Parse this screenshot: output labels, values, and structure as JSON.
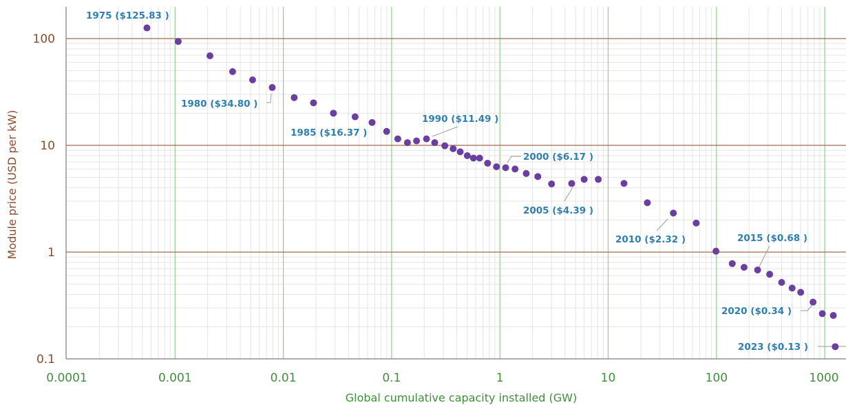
{
  "chart_data": {
    "type": "scatter",
    "xlabel": "Global cumulative capacity installed (GW)",
    "ylabel": "Module price (USD per kW)",
    "x_scale": "log",
    "y_scale": "log",
    "xlim": [
      0.0001,
      1250
    ],
    "ylim": [
      0.1,
      200
    ],
    "x_ticks": [
      "0.0001",
      "0.001",
      "0.01",
      "0.1",
      "1",
      "10",
      "100",
      "1000"
    ],
    "x_tick_values": [
      0.0001,
      0.001,
      0.01,
      0.1,
      1,
      10,
      100,
      1000
    ],
    "y_ticks": [
      "0.1",
      "1",
      "10",
      "100"
    ],
    "y_tick_values": [
      0.1,
      1,
      10,
      100
    ],
    "grid": true,
    "colors": {
      "points": "#6a3fa0",
      "annotation": "#2f7fae",
      "y_axis": "#8a4b2e",
      "x_axis": "#3f8f3a",
      "major_h_grid": "#a06a50",
      "major_v_grid": "#8fd08a",
      "minor_grid": "#e4e4e4"
    },
    "series": [
      {
        "x": [
          0.00055,
          0.00107,
          0.0021,
          0.0034,
          0.0052,
          0.0079,
          0.0126,
          0.019,
          0.029,
          0.046,
          0.066,
          0.09,
          0.114,
          0.14,
          0.17,
          0.21,
          0.25,
          0.31,
          0.37,
          0.43,
          0.5,
          0.57,
          0.65,
          0.77,
          0.93,
          1.13,
          1.38,
          1.75,
          2.24,
          3.0,
          4.6,
          6.0,
          8.1,
          14.0,
          23.0,
          40.0,
          65.0,
          99.0,
          140.0,
          180.0,
          240.0,
          310.0,
          400.0,
          500.0,
          600.0,
          780.0,
          950.0,
          1200.0
        ],
        "y": [
          125.83,
          94,
          69,
          49,
          41,
          34.8,
          28,
          25,
          20,
          18.5,
          16.37,
          13.5,
          11.5,
          10.6,
          11.0,
          11.49,
          10.6,
          9.9,
          9.3,
          8.7,
          8.0,
          7.6,
          7.6,
          6.8,
          6.3,
          6.17,
          6.0,
          5.45,
          5.1,
          4.35,
          4.39,
          4.8,
          4.8,
          4.4,
          2.9,
          2.32,
          1.87,
          1.02,
          0.78,
          0.72,
          0.68,
          0.62,
          0.52,
          0.46,
          0.42,
          0.34,
          0.265,
          0.255
        ]
      }
    ],
    "edge_point": {
      "x": 1250,
      "y": 0.13
    },
    "annotations": [
      {
        "text": "1975 ($125.83 )",
        "x": 0.00055,
        "y": 125.83
      },
      {
        "text": "1980 ($34.80 )",
        "x": 0.0079,
        "y": 34.8
      },
      {
        "text": "1985 ($16.37 )",
        "x": 0.066,
        "y": 16.37
      },
      {
        "text": "1990 ($11.49 )",
        "x": 0.21,
        "y": 11.49
      },
      {
        "text": "2000 ($6.17 )",
        "x": 1.13,
        "y": 6.17
      },
      {
        "text": "2005 ($4.39 )",
        "x": 4.6,
        "y": 4.39
      },
      {
        "text": "2010 ($2.32 )",
        "x": 40.0,
        "y": 2.32
      },
      {
        "text": "2015 ($0.68 )",
        "x": 240.0,
        "y": 0.68
      },
      {
        "text": "2020 ($0.34 )",
        "x": 780.0,
        "y": 0.34
      },
      {
        "text": "2023 ($0.13 )",
        "x": 1250,
        "y": 0.13
      }
    ]
  }
}
